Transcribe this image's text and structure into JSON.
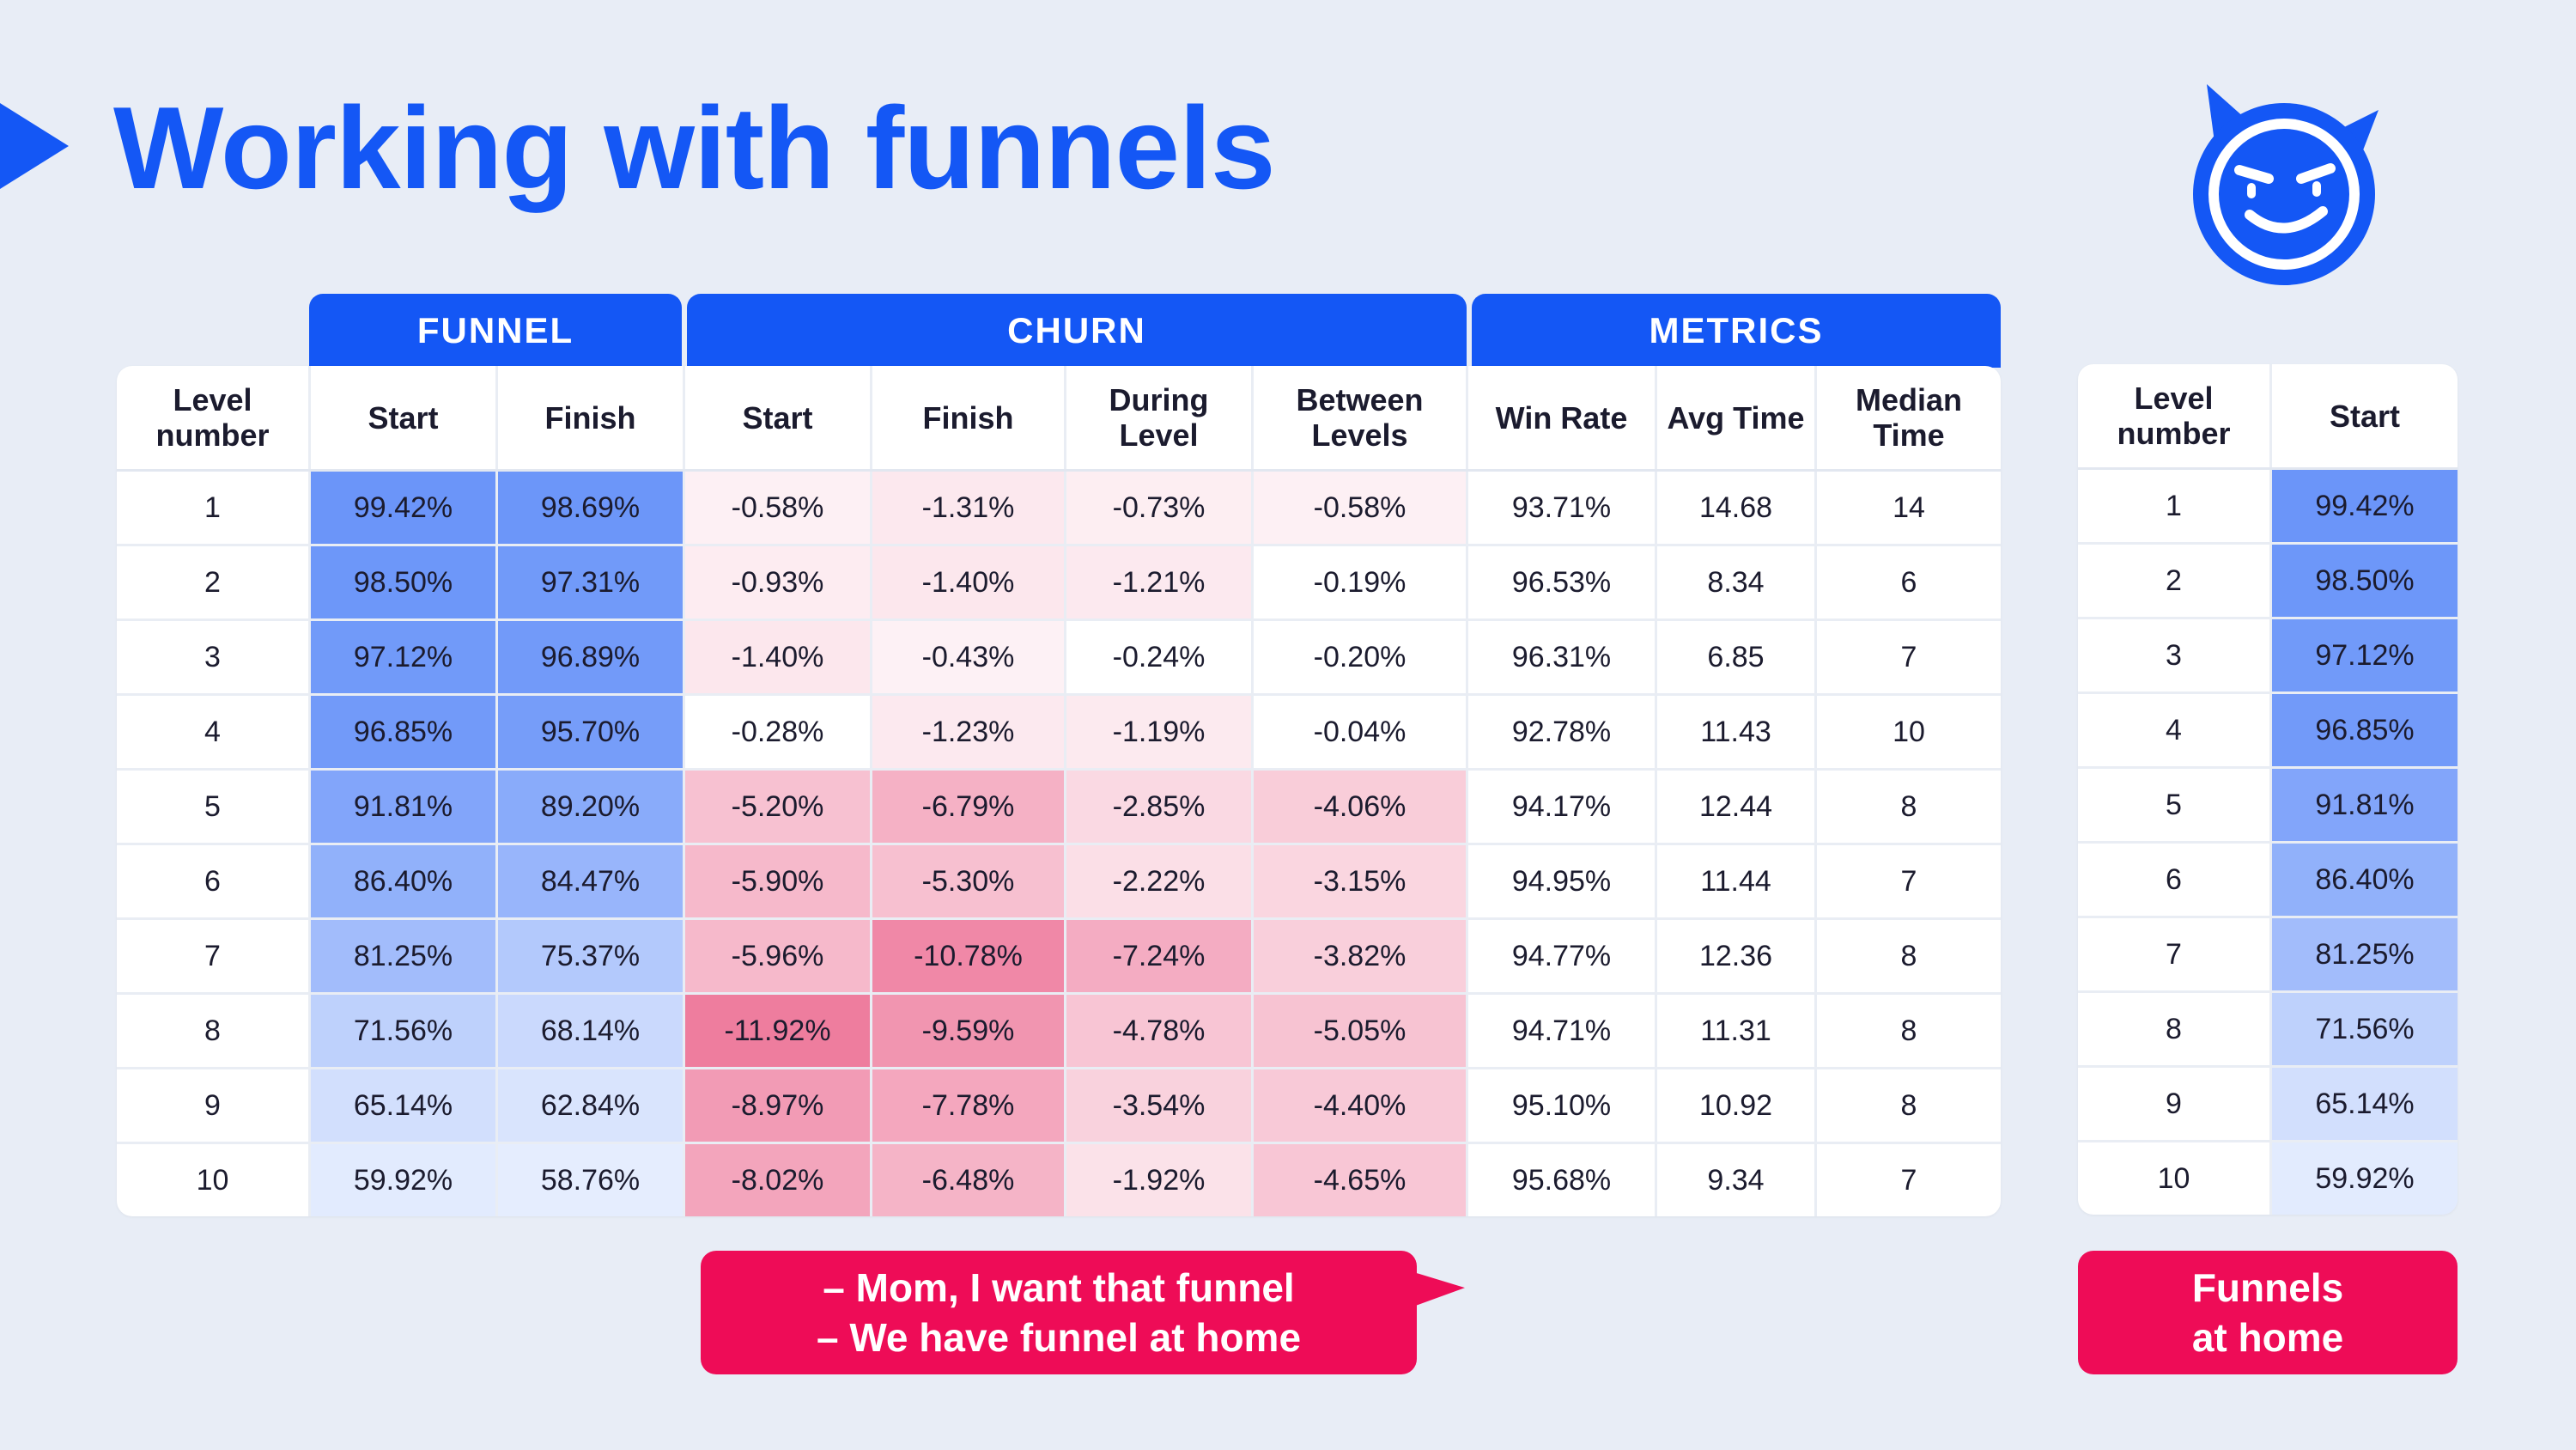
{
  "title": "Working with funnels",
  "logo": "devil-smiley-icon",
  "colors": {
    "accent": "#1457f5",
    "bubble": "#ee0c57",
    "background": "#e8edf6"
  },
  "groups": {
    "funnel": "FUNNEL",
    "churn": "CHURN",
    "metrics": "METRICS"
  },
  "main_table": {
    "headers": [
      "Level number",
      "Start",
      "Finish",
      "Start",
      "Finish",
      "During Level",
      "Between Levels",
      "Win Rate",
      "Avg Time",
      "Median Time"
    ],
    "rows": [
      [
        "1",
        "99.42%",
        "98.69%",
        "-0.58%",
        "-1.31%",
        "-0.73%",
        "-0.58%",
        "93.71%",
        "14.68",
        "14"
      ],
      [
        "2",
        "98.50%",
        "97.31%",
        "-0.93%",
        "-1.40%",
        "-1.21%",
        "-0.19%",
        "96.53%",
        "8.34",
        "6"
      ],
      [
        "3",
        "97.12%",
        "96.89%",
        "-1.40%",
        "-0.43%",
        "-0.24%",
        "-0.20%",
        "96.31%",
        "6.85",
        "7"
      ],
      [
        "4",
        "96.85%",
        "95.70%",
        "-0.28%",
        "-1.23%",
        "-1.19%",
        "-0.04%",
        "92.78%",
        "11.43",
        "10"
      ],
      [
        "5",
        "91.81%",
        "89.20%",
        "-5.20%",
        "-6.79%",
        "-2.85%",
        "-4.06%",
        "94.17%",
        "12.44",
        "8"
      ],
      [
        "6",
        "86.40%",
        "84.47%",
        "-5.90%",
        "-5.30%",
        "-2.22%",
        "-3.15%",
        "94.95%",
        "11.44",
        "7"
      ],
      [
        "7",
        "81.25%",
        "75.37%",
        "-5.96%",
        "-10.78%",
        "-7.24%",
        "-3.82%",
        "94.77%",
        "12.36",
        "8"
      ],
      [
        "8",
        "71.56%",
        "68.14%",
        "-11.92%",
        "-9.59%",
        "-4.78%",
        "-5.05%",
        "94.71%",
        "11.31",
        "8"
      ],
      [
        "9",
        "65.14%",
        "62.84%",
        "-8.97%",
        "-7.78%",
        "-3.54%",
        "-4.40%",
        "95.10%",
        "10.92",
        "8"
      ],
      [
        "10",
        "59.92%",
        "58.76%",
        "-8.02%",
        "-6.48%",
        "-1.92%",
        "-4.65%",
        "95.68%",
        "9.34",
        "7"
      ]
    ]
  },
  "side_table": {
    "headers": [
      "Level number",
      "Start"
    ],
    "rows": [
      [
        "1",
        "99.42%"
      ],
      [
        "2",
        "98.50%"
      ],
      [
        "3",
        "97.12%"
      ],
      [
        "4",
        "96.85%"
      ],
      [
        "5",
        "91.81%"
      ],
      [
        "6",
        "86.40%"
      ],
      [
        "7",
        "81.25%"
      ],
      [
        "8",
        "71.56%"
      ],
      [
        "9",
        "65.14%"
      ],
      [
        "10",
        "59.92%"
      ]
    ]
  },
  "bubble_main": {
    "line1": "– Mom, I want that funnel",
    "line2": "– We have funnel at home"
  },
  "bubble_side": {
    "line1": "Funnels",
    "line2": "at home"
  }
}
